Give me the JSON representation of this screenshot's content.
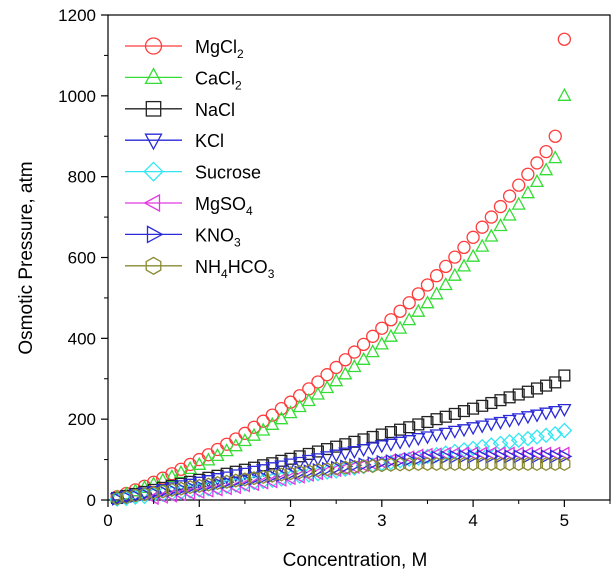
{
  "chart_data": {
    "type": "scatter",
    "title": "",
    "xlabel": "Concentration, M",
    "ylabel": "Osmotic Pressure, atm",
    "xlim": [
      0,
      5.5
    ],
    "ylim": [
      0,
      1200
    ],
    "xticks": [
      0,
      1,
      2,
      3,
      4,
      5
    ],
    "yticks": [
      0,
      200,
      400,
      600,
      800,
      1000,
      1200
    ],
    "grid": false,
    "legend_position": "top-left",
    "series": [
      {
        "name": "MgCl",
        "name_sub": "2",
        "marker": "circle",
        "color": "#ff3b3b",
        "x": [
          0.1,
          0.2,
          0.3,
          0.4,
          0.5,
          0.6,
          0.7,
          0.8,
          0.9,
          1.0,
          1.1,
          1.2,
          1.3,
          1.4,
          1.5,
          1.6,
          1.7,
          1.8,
          1.9,
          2.0,
          2.1,
          2.2,
          2.3,
          2.4,
          2.5,
          2.6,
          2.7,
          2.8,
          2.9,
          3.0,
          3.1,
          3.2,
          3.3,
          3.4,
          3.5,
          3.6,
          3.7,
          3.8,
          3.9,
          4.0,
          4.1,
          4.2,
          4.3,
          4.4,
          4.5,
          4.6,
          4.7,
          4.8,
          4.9,
          5.0
        ],
        "y": [
          8,
          16,
          25,
          34,
          44,
          54,
          65,
          76,
          88,
          100,
          112,
          125,
          138,
          151,
          165,
          180,
          195,
          210,
          226,
          242,
          258,
          275,
          292,
          310,
          328,
          347,
          366,
          385,
          405,
          425,
          446,
          467,
          488,
          510,
          532,
          555,
          578,
          601,
          625,
          650,
          675,
          700,
          726,
          752,
          779,
          806,
          834,
          862,
          900,
          1140
        ]
      },
      {
        "name": "CaCl",
        "name_sub": "2",
        "marker": "triangle-up",
        "color": "#33dd33",
        "x": [
          0.1,
          0.2,
          0.3,
          0.4,
          0.5,
          0.6,
          0.7,
          0.8,
          0.9,
          1.0,
          1.1,
          1.2,
          1.3,
          1.4,
          1.5,
          1.6,
          1.7,
          1.8,
          1.9,
          2.0,
          2.1,
          2.2,
          2.3,
          2.4,
          2.5,
          2.6,
          2.7,
          2.8,
          2.9,
          3.0,
          3.1,
          3.2,
          3.3,
          3.4,
          3.5,
          3.6,
          3.7,
          3.8,
          3.9,
          4.0,
          4.1,
          4.2,
          4.3,
          4.4,
          4.5,
          4.6,
          4.7,
          4.8,
          4.9,
          5.0
        ],
        "y": [
          7,
          14,
          22,
          30,
          39,
          48,
          57,
          67,
          77,
          87,
          98,
          109,
          121,
          133,
          146,
          159,
          172,
          186,
          200,
          215,
          230,
          245,
          261,
          277,
          294,
          311,
          329,
          347,
          366,
          385,
          404,
          424,
          445,
          466,
          487,
          509,
          532,
          555,
          578,
          602,
          627,
          652,
          678,
          704,
          731,
          759,
          787,
          816,
          846,
          1000
        ]
      },
      {
        "name": "NaCl",
        "name_sub": "",
        "marker": "square",
        "color": "#222222",
        "x": [
          0.1,
          0.2,
          0.3,
          0.4,
          0.5,
          0.6,
          0.7,
          0.8,
          0.9,
          1.0,
          1.1,
          1.2,
          1.3,
          1.4,
          1.5,
          1.6,
          1.7,
          1.8,
          1.9,
          2.0,
          2.1,
          2.2,
          2.3,
          2.4,
          2.5,
          2.6,
          2.7,
          2.8,
          2.9,
          3.0,
          3.1,
          3.2,
          3.3,
          3.4,
          3.5,
          3.6,
          3.7,
          3.8,
          3.9,
          4.0,
          4.1,
          4.2,
          4.3,
          4.4,
          4.5,
          4.6,
          4.7,
          4.8,
          4.9,
          5.0
        ],
        "y": [
          5,
          10,
          15,
          20,
          25,
          30,
          35,
          40,
          45,
          50,
          55,
          60,
          65,
          70,
          75,
          80,
          86,
          91,
          97,
          102,
          108,
          114,
          120,
          126,
          132,
          138,
          144,
          150,
          156,
          162,
          168,
          174,
          180,
          187,
          193,
          200,
          206,
          213,
          220,
          226,
          233,
          240,
          247,
          254,
          261,
          268,
          276,
          283,
          291,
          308
        ]
      },
      {
        "name": "KCl",
        "name_sub": "",
        "marker": "triangle-down",
        "color": "#2a2ad8",
        "x": [
          0.1,
          0.2,
          0.3,
          0.4,
          0.5,
          0.6,
          0.7,
          0.8,
          0.9,
          1.0,
          1.1,
          1.2,
          1.3,
          1.4,
          1.5,
          1.6,
          1.7,
          1.8,
          1.9,
          2.0,
          2.1,
          2.2,
          2.3,
          2.4,
          2.5,
          2.6,
          2.7,
          2.8,
          2.9,
          3.0,
          3.1,
          3.2,
          3.3,
          3.4,
          3.5,
          3.6,
          3.7,
          3.8,
          3.9,
          4.0,
          4.1,
          4.2,
          4.3,
          4.4,
          4.5,
          4.6,
          4.7,
          4.8,
          4.9,
          5.0
        ],
        "y": [
          4,
          9,
          13,
          18,
          22,
          27,
          31,
          36,
          40,
          45,
          49,
          54,
          58,
          63,
          67,
          72,
          76,
          81,
          85,
          90,
          94,
          99,
          103,
          108,
          112,
          117,
          121,
          126,
          130,
          135,
          139,
          144,
          148,
          153,
          157,
          162,
          166,
          171,
          175,
          180,
          184,
          189,
          193,
          198,
          202,
          207,
          211,
          216,
          220,
          225
        ]
      },
      {
        "name": "Sucrose",
        "name_sub": "",
        "marker": "diamond",
        "color": "#33e6f2",
        "x": [
          0.1,
          0.2,
          0.3,
          0.4,
          0.5,
          0.6,
          0.7,
          0.8,
          0.9,
          1.0,
          1.1,
          1.2,
          1.3,
          1.4,
          1.5,
          1.6,
          1.7,
          1.8,
          1.9,
          2.0,
          2.1,
          2.2,
          2.3,
          2.4,
          2.5,
          2.6,
          2.7,
          2.8,
          2.9,
          3.0,
          3.1,
          3.2,
          3.3,
          3.4,
          3.5,
          3.6,
          3.7,
          3.8,
          3.9,
          4.0,
          4.1,
          4.2,
          4.3,
          4.4,
          4.5,
          4.6,
          4.7,
          4.8,
          4.9,
          5.0
        ],
        "y": [
          2,
          4,
          7,
          9,
          12,
          14,
          17,
          19,
          22,
          25,
          28,
          31,
          34,
          37,
          40,
          43,
          46,
          49,
          52,
          55,
          59,
          62,
          65,
          69,
          72,
          76,
          79,
          83,
          86,
          90,
          93,
          97,
          101,
          104,
          108,
          112,
          116,
          120,
          124,
          128,
          132,
          136,
          140,
          144,
          148,
          152,
          156,
          160,
          164,
          172
        ]
      },
      {
        "name": "MgSO",
        "name_sub": "4",
        "marker": "triangle-left",
        "color": "#e23ae2",
        "x": [
          0.5,
          0.6,
          0.7,
          0.8,
          0.9,
          1.0,
          1.1,
          1.2,
          1.3,
          1.4,
          1.5,
          1.6,
          1.7,
          1.8,
          1.9,
          2.0,
          2.1,
          2.2,
          2.3,
          2.4,
          2.5,
          2.6,
          2.7,
          2.8,
          2.9,
          3.0,
          3.1,
          3.2,
          3.3,
          3.4,
          3.5,
          3.6,
          3.7,
          3.8,
          3.9,
          4.0,
          4.1,
          4.2,
          4.3,
          4.4,
          4.5,
          4.6,
          4.7,
          4.8,
          4.9,
          5.0
        ],
        "y": [
          5,
          8,
          11,
          14,
          17,
          20,
          23,
          26,
          29,
          32,
          36,
          39,
          43,
          46,
          50,
          54,
          58,
          62,
          66,
          70,
          74,
          78,
          82,
          86,
          90,
          94,
          98,
          102,
          106,
          110,
          112,
          113,
          114,
          114,
          115,
          115,
          115,
          115,
          115,
          115,
          115,
          115,
          115,
          115,
          115,
          115
        ]
      },
      {
        "name": "KNO",
        "name_sub": "3",
        "marker": "triangle-right",
        "color": "#2a2ad8",
        "x": [
          0.1,
          0.2,
          0.3,
          0.4,
          0.5,
          0.6,
          0.7,
          0.8,
          0.9,
          1.0,
          1.1,
          1.2,
          1.3,
          1.4,
          1.5,
          1.6,
          1.7,
          1.8,
          1.9,
          2.0,
          2.1,
          2.2,
          2.3,
          2.4,
          2.5,
          2.6,
          2.7,
          2.8,
          2.9,
          3.0,
          3.1,
          3.2,
          3.3,
          3.4,
          3.5,
          3.6,
          3.7,
          3.8,
          3.9,
          4.0,
          4.1,
          4.2,
          4.3,
          4.4,
          4.5,
          4.6,
          4.7,
          4.8,
          4.9,
          5.0
        ],
        "y": [
          3,
          7,
          10,
          14,
          17,
          21,
          24,
          27,
          31,
          34,
          37,
          41,
          44,
          47,
          50,
          53,
          56,
          59,
          62,
          65,
          68,
          71,
          74,
          77,
          80,
          83,
          86,
          88,
          91,
          94,
          96,
          98,
          100,
          102,
          104,
          105,
          106,
          107,
          108,
          108,
          108,
          108,
          108,
          108,
          108,
          108,
          108,
          108,
          108,
          108
        ]
      },
      {
        "name": "NH",
        "name_sub": "4",
        "name_mid": "HCO",
        "name_sub2": "3",
        "marker": "hexagon",
        "color": "#8a8a33",
        "x": [
          0.1,
          0.2,
          0.3,
          0.4,
          0.5,
          0.6,
          0.7,
          0.8,
          0.9,
          1.0,
          1.1,
          1.2,
          1.3,
          1.4,
          1.5,
          1.6,
          1.7,
          1.8,
          1.9,
          2.0,
          2.1,
          2.2,
          2.3,
          2.4,
          2.5,
          2.6,
          2.7,
          2.8,
          2.9,
          3.0,
          3.1,
          3.2,
          3.3,
          3.4,
          3.5,
          3.6,
          3.7,
          3.8,
          3.9,
          4.0,
          4.1,
          4.2,
          4.3,
          4.4,
          4.5,
          4.6,
          4.7,
          4.8,
          4.9,
          5.0
        ],
        "y": [
          4,
          7,
          11,
          14,
          18,
          21,
          25,
          28,
          32,
          35,
          38,
          42,
          45,
          48,
          51,
          54,
          57,
          60,
          63,
          66,
          69,
          71,
          74,
          76,
          78,
          80,
          82,
          83,
          84,
          86,
          87,
          88,
          88,
          89,
          89,
          89,
          89,
          89,
          89,
          89,
          89,
          89,
          89,
          89,
          89,
          89,
          89,
          89,
          89,
          89
        ]
      }
    ]
  }
}
